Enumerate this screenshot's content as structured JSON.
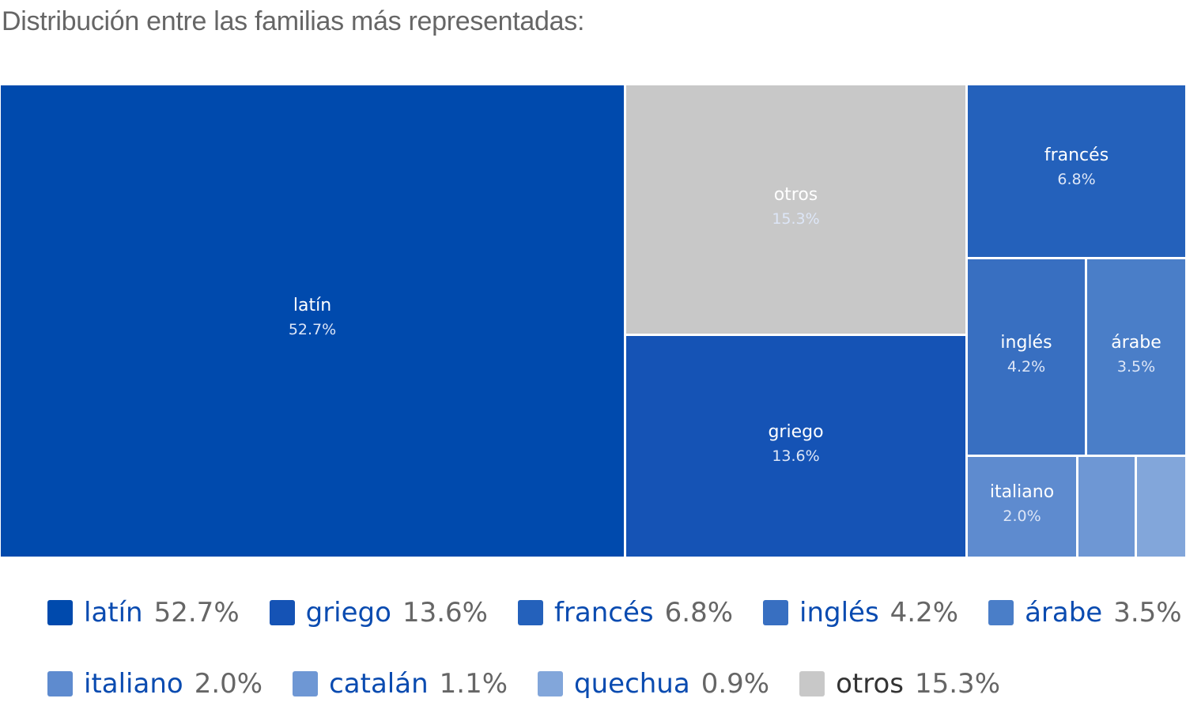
{
  "title": "Distribución entre las familias más representadas:",
  "chart_data": {
    "type": "treemap",
    "unit": "%",
    "items": [
      {
        "name": "latín",
        "value": 52.7,
        "label": "52.7%",
        "color": "#004aad"
      },
      {
        "name": "otros",
        "value": 15.3,
        "label": "15.3%",
        "color": "#c8c8c8"
      },
      {
        "name": "griego",
        "value": 13.6,
        "label": "13.6%",
        "color": "#1553b5"
      },
      {
        "name": "francés",
        "value": 6.8,
        "label": "6.8%",
        "color": "#2461bb"
      },
      {
        "name": "inglés",
        "value": 4.2,
        "label": "4.2%",
        "color": "#386fc1"
      },
      {
        "name": "árabe",
        "value": 3.5,
        "label": "3.5%",
        "color": "#4a7ec8"
      },
      {
        "name": "italiano",
        "value": 2.0,
        "label": "2.0%",
        "color": "#5e8bcf"
      },
      {
        "name": "catalán",
        "value": 1.1,
        "label": "1.1%",
        "color": "#6e97d4"
      },
      {
        "name": "quechua",
        "value": 0.9,
        "label": "0.9%",
        "color": "#82a6da"
      }
    ]
  },
  "legend": {
    "rows": [
      [
        {
          "name": "latín",
          "pct": "52.7%",
          "color": "#004aad"
        },
        {
          "name": "griego",
          "pct": "13.6%",
          "color": "#1553b5"
        },
        {
          "name": "francés",
          "pct": "6.8%",
          "color": "#2461bb"
        },
        {
          "name": "inglés",
          "pct": "4.2%",
          "color": "#386fc1"
        },
        {
          "name": "árabe",
          "pct": "3.5%",
          "color": "#4a7ec8"
        }
      ],
      [
        {
          "name": "italiano",
          "pct": "2.0%",
          "color": "#5e8bcf"
        },
        {
          "name": "catalán",
          "pct": "1.1%",
          "color": "#6e97d4"
        },
        {
          "name": "quechua",
          "pct": "0.9%",
          "color": "#82a6da"
        },
        {
          "name": "otros",
          "pct": "15.3%",
          "color": "#c8c8c8"
        }
      ]
    ]
  }
}
